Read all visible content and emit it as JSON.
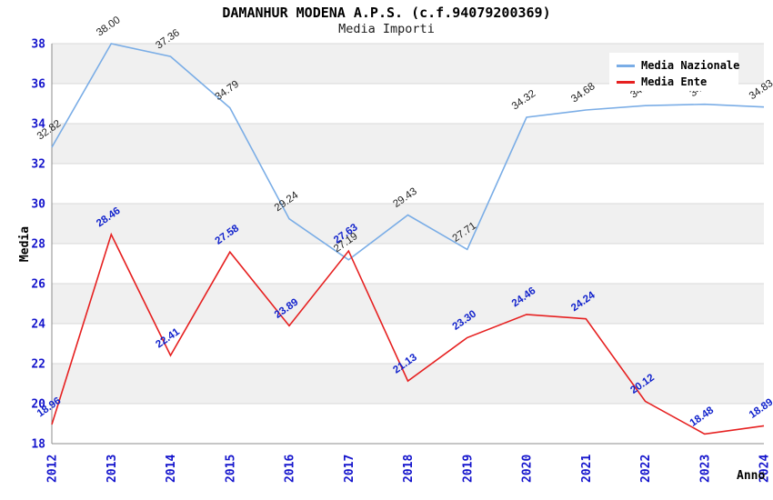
{
  "title": "DAMANHUR MODENA A.P.S. (c.f.94079200369)",
  "subtitle": "Media Importi",
  "axes": {
    "y_label": "Media",
    "x_label": "Anno",
    "y_ticks": [
      38,
      36,
      34,
      32,
      30,
      28,
      26,
      24,
      22,
      20,
      18
    ],
    "x_ticks": [
      "2012",
      "2013",
      "2014",
      "2015",
      "2016",
      "2017",
      "2018",
      "2019",
      "2020",
      "2021",
      "2022",
      "2023",
      "2024"
    ]
  },
  "legend": [
    {
      "label": "Media Nazionale",
      "color": "#7aade6"
    },
    {
      "label": "Media Ente",
      "color": "#e62020"
    }
  ],
  "colors": {
    "band_gray": "#f0f0f0",
    "gridline": "#d9d9d9",
    "axis_line": "#8c8c8c",
    "tick_label_blue": "#1414cc",
    "nazionale_line": "#7aade6",
    "nazionale_label": "#222222",
    "ente_line": "#e62020",
    "ente_label": "#1122cc"
  },
  "chart_data": {
    "type": "line",
    "title": "DAMANHUR MODENA A.P.S. (c.f.94079200369)",
    "subtitle": "Media Importi",
    "xlabel": "Anno",
    "ylabel": "Media",
    "x": [
      2012,
      2013,
      2014,
      2015,
      2016,
      2017,
      2018,
      2019,
      2020,
      2021,
      2022,
      2023,
      2024
    ],
    "ylim": [
      18,
      38
    ],
    "grid": "horizontal-bands-alternating",
    "legend_position": "top-right",
    "series": [
      {
        "name": "Media Nazionale",
        "color": "#7aade6",
        "label_color": "#222222",
        "label_bold": false,
        "values": [
          32.82,
          38.0,
          37.36,
          34.79,
          29.24,
          27.19,
          29.43,
          27.71,
          34.32,
          34.68,
          34.9,
          34.97,
          34.83
        ],
        "labels": [
          "32.82",
          "38.00",
          "37.36",
          "34.79",
          "29.24",
          "27.19",
          "29.43",
          "27.71",
          "34.32",
          "34.68",
          "34.90",
          "34.97",
          "34.83"
        ]
      },
      {
        "name": "Media Ente",
        "color": "#e62020",
        "label_color": "#1122cc",
        "label_bold": true,
        "values": [
          18.96,
          28.46,
          22.41,
          27.58,
          23.89,
          27.63,
          21.13,
          23.3,
          24.46,
          24.24,
          20.12,
          18.48,
          18.89
        ],
        "labels": [
          "18.96",
          "28.46",
          "22.41",
          "27.58",
          "23.89",
          "27.63",
          "21.13",
          "23.30",
          "24.46",
          "24.24",
          "20.12",
          "18.48",
          "18.89"
        ]
      }
    ]
  }
}
